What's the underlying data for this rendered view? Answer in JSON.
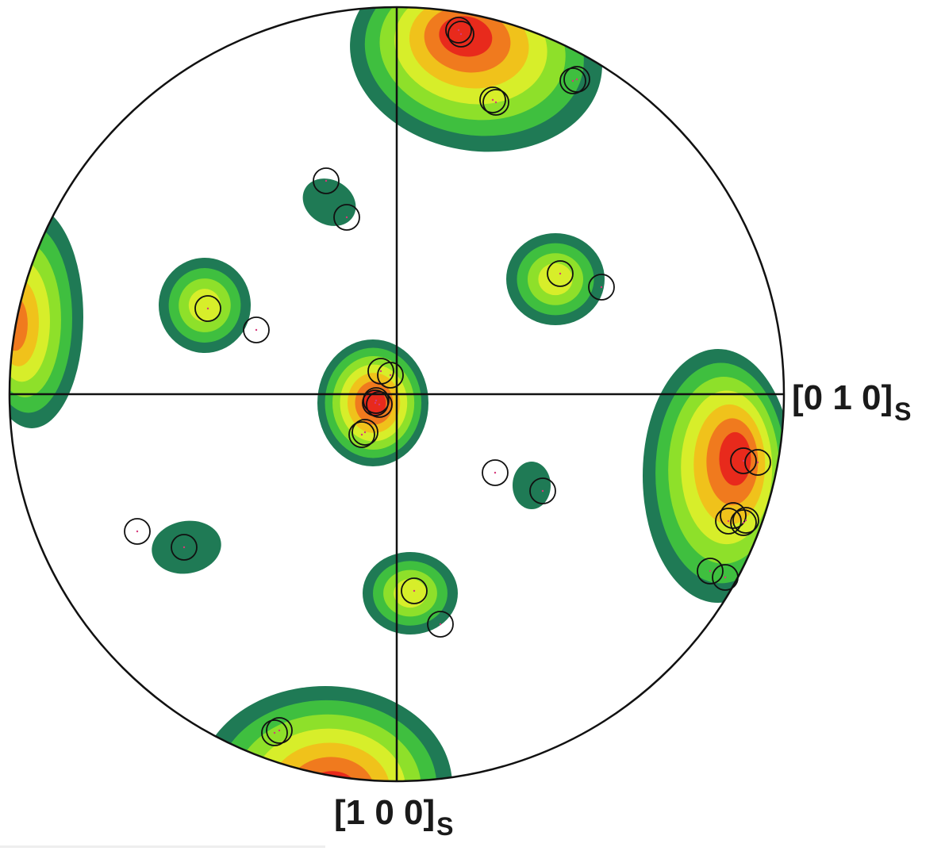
{
  "figure": {
    "type": "pole-figure",
    "axis_labels": {
      "x_axis": {
        "main": "[0 1 0]",
        "subscript": "S"
      },
      "y_axis": {
        "main": "[1 0 0]",
        "subscript": "S"
      }
    },
    "intensity_colors": [
      "#1f7a55",
      "#3fbf3f",
      "#8ee02a",
      "#d7ee2a",
      "#f0c21b",
      "#f07a1e",
      "#e82a1c"
    ],
    "marker_color": "#111111"
  }
}
